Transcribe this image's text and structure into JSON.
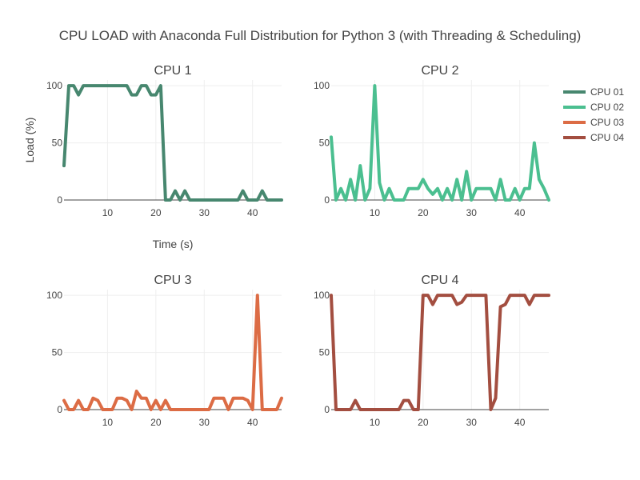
{
  "title": "CPU LOAD with Anaconda Full Distribution for Python 3 (with Threading & Scheduling)",
  "legend_position": "top-right",
  "chart_data": [
    {
      "type": "line",
      "title": "CPU 1",
      "xlabel": "Time (s)",
      "ylabel": "Load (%)",
      "series_name": "CPU 01",
      "color": "#47876f",
      "xlim": [
        1,
        46
      ],
      "ylim": [
        0,
        105
      ],
      "xticks": [
        10,
        20,
        30,
        40
      ],
      "yticks": [
        0,
        50,
        100
      ],
      "grid": true,
      "x": [
        1,
        2,
        3,
        4,
        5,
        6,
        7,
        8,
        9,
        10,
        11,
        12,
        13,
        14,
        15,
        16,
        17,
        18,
        19,
        20,
        21,
        22,
        23,
        24,
        25,
        26,
        27,
        28,
        29,
        30,
        31,
        32,
        33,
        34,
        35,
        36,
        37,
        38,
        39,
        40,
        41,
        42,
        43,
        44,
        45,
        46
      ],
      "values": [
        30,
        100,
        100,
        92,
        100,
        100,
        100,
        100,
        100,
        100,
        100,
        100,
        100,
        100,
        92,
        92,
        100,
        100,
        92,
        92,
        100,
        0,
        0,
        8,
        0,
        8,
        0,
        0,
        0,
        0,
        0,
        0,
        0,
        0,
        0,
        0,
        0,
        8,
        0,
        0,
        0,
        8,
        0,
        0,
        0,
        0
      ]
    },
    {
      "type": "line",
      "title": "CPU 2",
      "series_name": "CPU 02",
      "color": "#4bbf90",
      "xlim": [
        1,
        46
      ],
      "ylim": [
        0,
        105
      ],
      "xticks": [
        10,
        20,
        30,
        40
      ],
      "yticks": [
        0,
        50,
        100
      ],
      "grid": true,
      "x": [
        1,
        2,
        3,
        4,
        5,
        6,
        7,
        8,
        9,
        10,
        11,
        12,
        13,
        14,
        15,
        16,
        17,
        18,
        19,
        20,
        21,
        22,
        23,
        24,
        25,
        26,
        27,
        28,
        29,
        30,
        31,
        32,
        33,
        34,
        35,
        36,
        37,
        38,
        39,
        40,
        41,
        42,
        43,
        44,
        45,
        46
      ],
      "values": [
        55,
        0,
        10,
        0,
        18,
        0,
        30,
        0,
        10,
        100,
        15,
        0,
        10,
        0,
        0,
        0,
        10,
        10,
        10,
        18,
        10,
        5,
        10,
        0,
        10,
        0,
        18,
        0,
        25,
        0,
        10,
        10,
        10,
        10,
        0,
        18,
        0,
        0,
        10,
        0,
        10,
        10,
        50,
        18,
        10,
        0
      ]
    },
    {
      "type": "line",
      "title": "CPU 3",
      "series_name": "CPU 03",
      "color": "#dc6c45",
      "xlim": [
        1,
        46
      ],
      "ylim": [
        0,
        105
      ],
      "xticks": [
        10,
        20,
        30,
        40
      ],
      "yticks": [
        0,
        50,
        100
      ],
      "grid": true,
      "x": [
        1,
        2,
        3,
        4,
        5,
        6,
        7,
        8,
        9,
        10,
        11,
        12,
        13,
        14,
        15,
        16,
        17,
        18,
        19,
        20,
        21,
        22,
        23,
        24,
        25,
        26,
        27,
        28,
        29,
        30,
        31,
        32,
        33,
        34,
        35,
        36,
        37,
        38,
        39,
        40,
        41,
        42,
        43,
        44,
        45,
        46
      ],
      "values": [
        8,
        0,
        0,
        8,
        0,
        0,
        10,
        8,
        0,
        0,
        0,
        10,
        10,
        8,
        0,
        16,
        10,
        10,
        0,
        8,
        0,
        8,
        0,
        0,
        0,
        0,
        0,
        0,
        0,
        0,
        0,
        10,
        10,
        10,
        0,
        10,
        10,
        10,
        8,
        0,
        100,
        0,
        0,
        0,
        0,
        10
      ]
    },
    {
      "type": "line",
      "title": "CPU 4",
      "series_name": "CPU 04",
      "color": "#a34e40",
      "xlim": [
        1,
        46
      ],
      "ylim": [
        0,
        105
      ],
      "xticks": [
        10,
        20,
        30,
        40
      ],
      "yticks": [
        0,
        50,
        100
      ],
      "grid": true,
      "x": [
        1,
        2,
        3,
        4,
        5,
        6,
        7,
        8,
        9,
        10,
        11,
        12,
        13,
        14,
        15,
        16,
        17,
        18,
        19,
        20,
        21,
        22,
        23,
        24,
        25,
        26,
        27,
        28,
        29,
        30,
        31,
        32,
        33,
        34,
        35,
        36,
        37,
        38,
        39,
        40,
        41,
        42,
        43,
        44,
        45,
        46
      ],
      "values": [
        100,
        0,
        0,
        0,
        0,
        8,
        0,
        0,
        0,
        0,
        0,
        0,
        0,
        0,
        0,
        8,
        8,
        0,
        0,
        100,
        100,
        92,
        100,
        100,
        100,
        100,
        92,
        94,
        100,
        100,
        100,
        100,
        100,
        0,
        10,
        90,
        92,
        100,
        100,
        100,
        100,
        92,
        100,
        100,
        100,
        100
      ]
    }
  ]
}
